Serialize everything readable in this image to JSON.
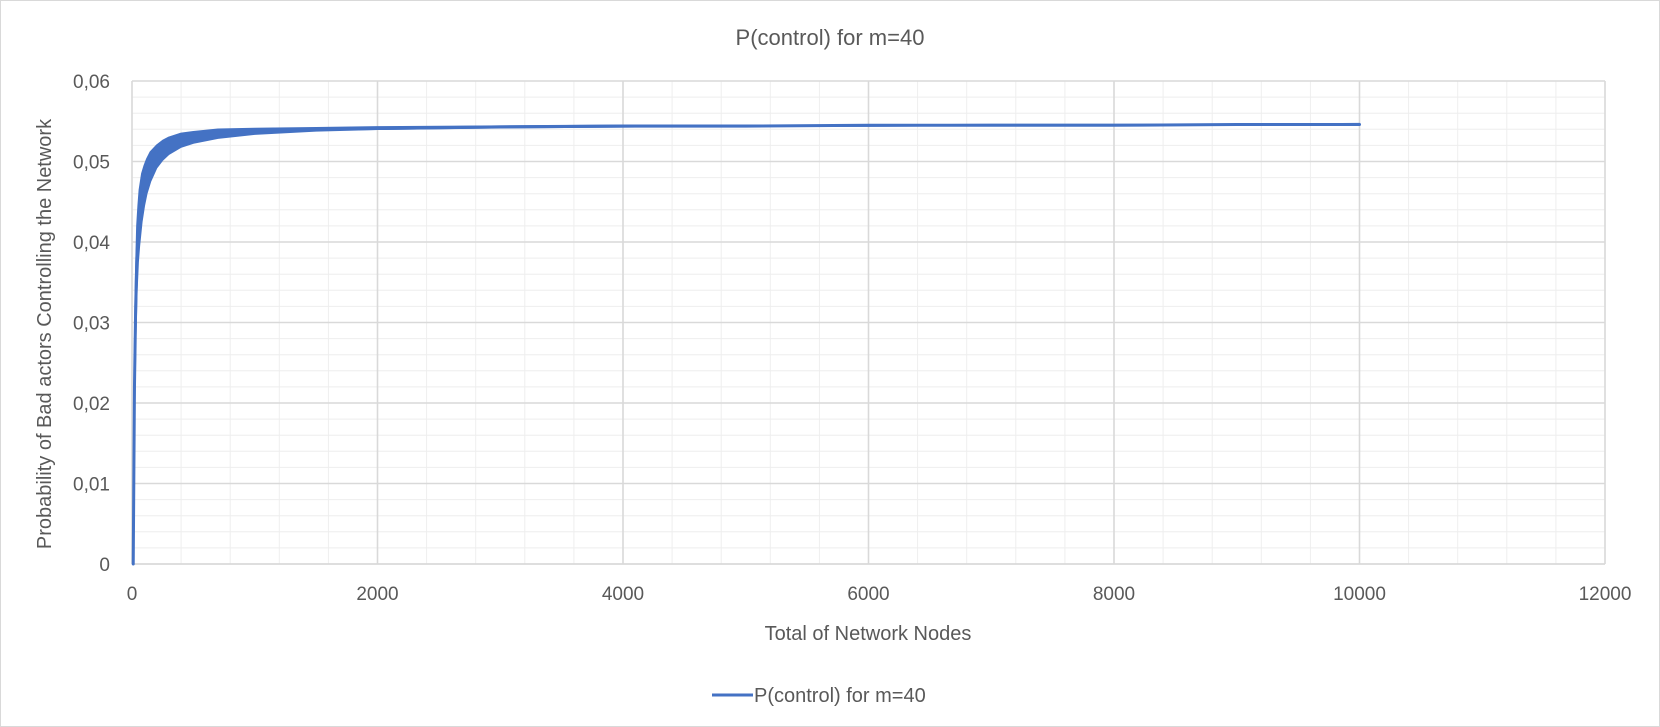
{
  "chart_data": {
    "type": "line",
    "title": "P(control) for m=40",
    "xlabel": "Total of Network Nodes",
    "ylabel": "Probability of Bad actors Controlling the Network",
    "xlim": [
      0,
      12000
    ],
    "ylim": [
      0,
      0.06
    ],
    "x_ticks": [
      0,
      2000,
      4000,
      6000,
      8000,
      10000,
      12000
    ],
    "x_tick_labels": [
      "0",
      "2000",
      "4000",
      "6000",
      "8000",
      "10000",
      "12000"
    ],
    "y_ticks": [
      0,
      0.01,
      0.02,
      0.03,
      0.04,
      0.05,
      0.06
    ],
    "y_tick_labels": [
      "0",
      "0,01",
      "0,02",
      "0,03",
      "0,04",
      "0,05",
      "0,06"
    ],
    "grid": "major and minor",
    "legend_position": "bottom",
    "series": [
      {
        "name": "P(control) for m=40",
        "color": "#4472c4",
        "x": [
          10,
          20,
          30,
          40,
          50,
          60,
          80,
          100,
          120,
          150,
          200,
          250,
          300,
          400,
          500,
          700,
          1000,
          1500,
          2000,
          3000,
          4000,
          5000,
          6000,
          7000,
          8000,
          9000,
          10000
        ],
        "y": [
          0,
          0.022,
          0.032,
          0.038,
          0.041,
          0.043,
          0.0455,
          0.047,
          0.0482,
          0.0495,
          0.0507,
          0.0515,
          0.052,
          0.0527,
          0.0531,
          0.0535,
          0.0538,
          0.054,
          0.0541,
          0.0543,
          0.0544,
          0.0544,
          0.0545,
          0.0545,
          0.0545,
          0.0546,
          0.0546
        ],
        "band_lower": [
          0,
          0.018,
          0.028,
          0.034,
          0.0375,
          0.0395,
          0.0425,
          0.0445,
          0.046,
          0.0475,
          0.0492,
          0.0502,
          0.0509,
          0.0518,
          0.0523,
          0.0529,
          0.0534,
          0.0538,
          0.054,
          0.0542,
          0.0543,
          0.0544,
          0.0544,
          0.0545,
          0.0545,
          0.0545,
          0.0546
        ],
        "band_upper": [
          0.005,
          0.026,
          0.036,
          0.042,
          0.0445,
          0.0465,
          0.0485,
          0.0495,
          0.0503,
          0.0512,
          0.052,
          0.0526,
          0.053,
          0.0535,
          0.0537,
          0.054,
          0.0541,
          0.0542,
          0.0543,
          0.0544,
          0.0545,
          0.0545,
          0.0545,
          0.0546,
          0.0546,
          0.0546,
          0.0547
        ]
      }
    ]
  }
}
